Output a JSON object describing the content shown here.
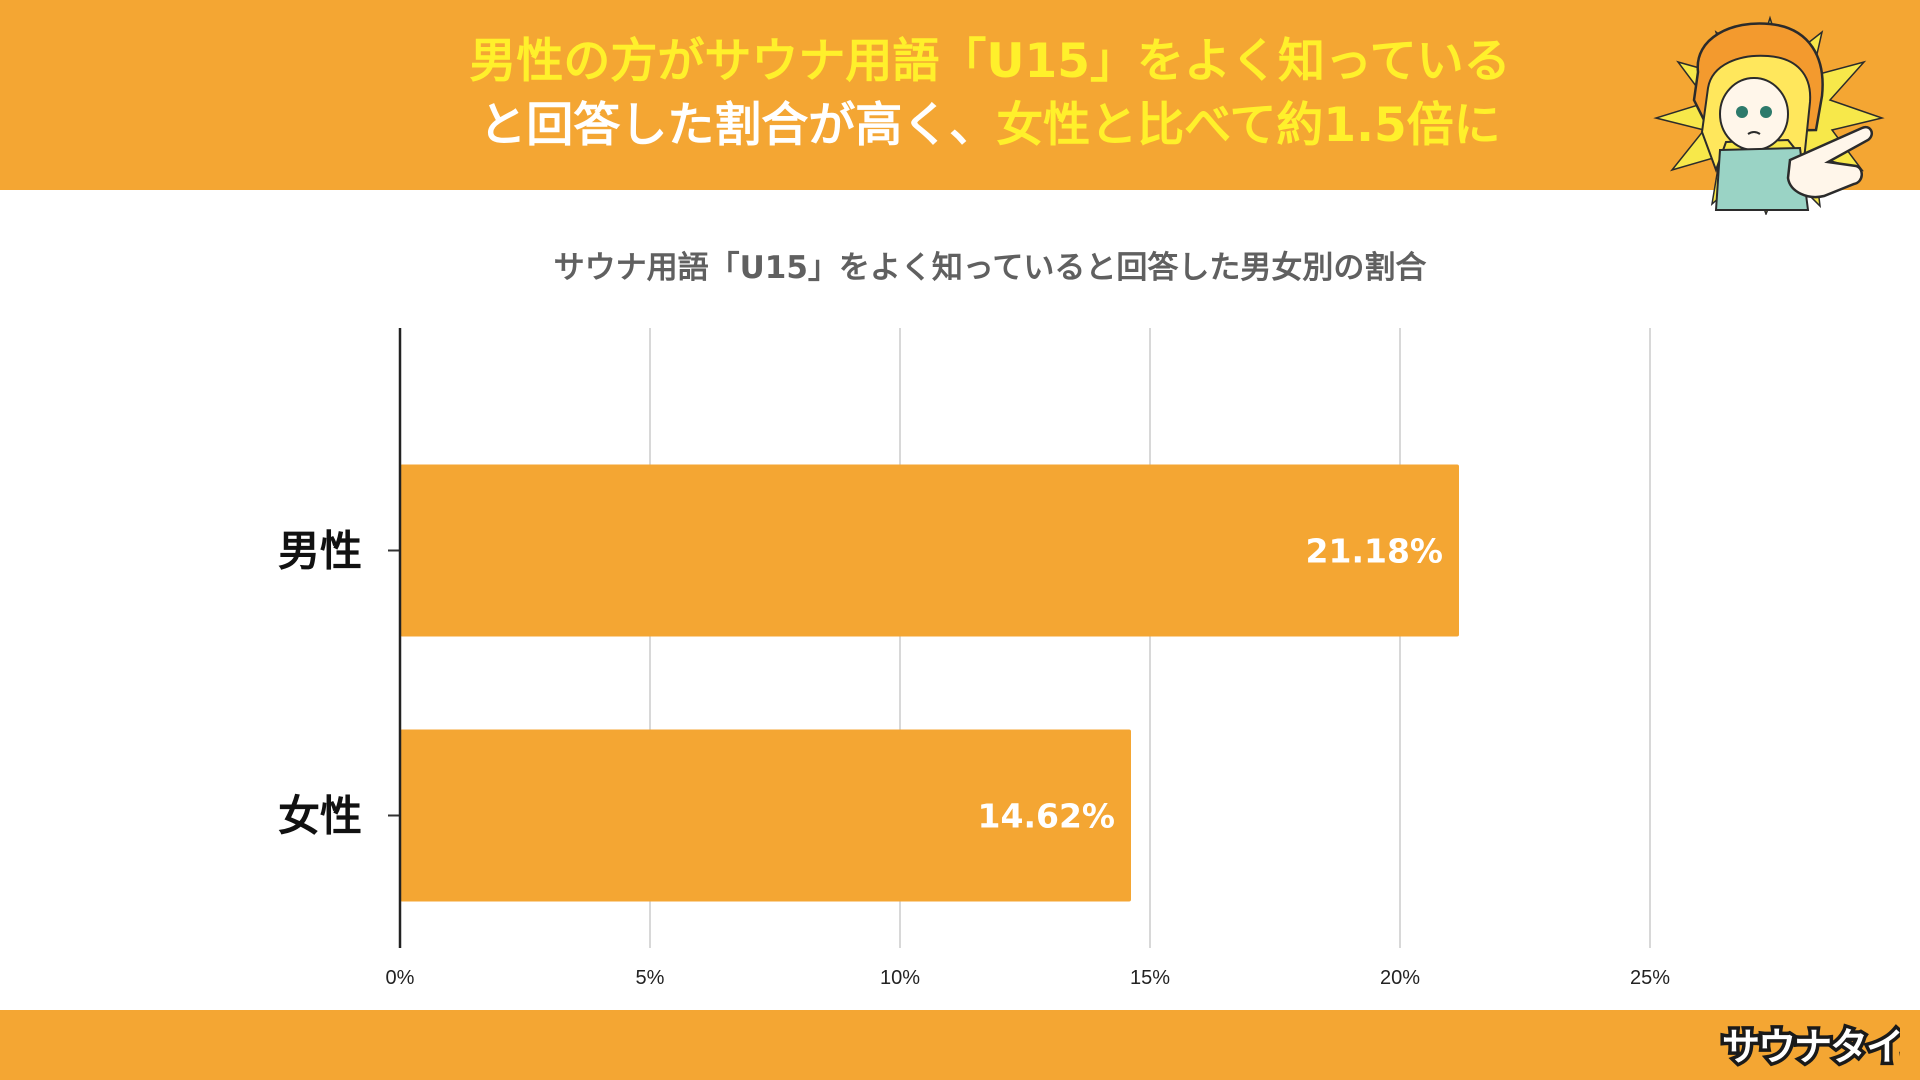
{
  "header": {
    "headline_line1": "男性の方がサウナ用語「U15」をよく知っている",
    "headline_line2_white": "と回答した割合が高く、",
    "headline_line2_yellow": "女性と比べて約1.5倍に"
  },
  "colors": {
    "banner": "#F4A633",
    "bar": "#F4A633",
    "headline_yellow": "#FFF02B",
    "headline_white": "#FFFFFF",
    "title_gray": "#606060",
    "grid": "#CCCCCC"
  },
  "chart_data": {
    "type": "bar",
    "orientation": "horizontal",
    "title": "サウナ用語「U15」をよく知っていると回答した男女別の割合",
    "categories": [
      "男性",
      "女性"
    ],
    "values": [
      21.18,
      14.62
    ],
    "data_labels": [
      "21.18%",
      "14.62%"
    ],
    "xticks": [
      "0%",
      "5%",
      "10%",
      "15%",
      "20%",
      "25%"
    ],
    "xlim": [
      0,
      25
    ],
    "grid": true,
    "legend": false
  },
  "branding": {
    "logo_text": "サウナタイム",
    "mascot": "pointing-girl-illustration"
  }
}
